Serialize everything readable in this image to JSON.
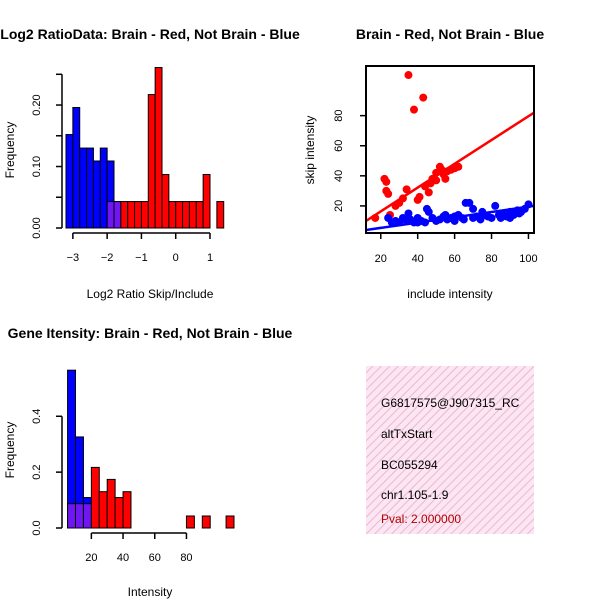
{
  "colors": {
    "brain": "#ff0000",
    "not_brain": "#0000ff",
    "overlap": "#a020f0",
    "info_bg": "#f7d3ea"
  },
  "info": {
    "line1": "G6817575@J907315_RC",
    "line2": "altTxStart",
    "line3": "BC055294",
    "line4": "chr1.105-1.9",
    "pval": "Pval: 2.000000"
  },
  "chart_data": [
    {
      "id": "ratio",
      "type": "bar",
      "title": "Log2 RatioData: Brain - Red, Not Brain - Blue",
      "xlabel": "Log2 Ratio Skip/Include",
      "ylabel": "Frequency",
      "xlim": [
        -3.2,
        1.7
      ],
      "ylim": [
        0,
        0.27
      ],
      "xticks": [
        -3,
        -2,
        -1,
        0,
        1
      ],
      "xtick_labels": [
        "−3",
        "−2",
        "−1",
        "0",
        "1"
      ],
      "yticks": [
        0.0,
        0.05,
        0.1,
        0.15,
        0.2,
        0.25
      ],
      "ytick_labels": [
        "0.00",
        "",
        "0.10",
        "",
        "0.20",
        ""
      ],
      "bin_width": 0.2,
      "series": [
        {
          "name": "Not Brain",
          "color": "blue",
          "bins": [
            [
              -3.1,
              0.152
            ],
            [
              -2.9,
              0.196
            ],
            [
              -2.7,
              0.13
            ],
            [
              -2.5,
              0.13
            ],
            [
              -2.3,
              0.109
            ],
            [
              -2.1,
              0.13
            ],
            [
              -1.9,
              0.109
            ],
            [
              -1.7,
              0.043
            ]
          ]
        },
        {
          "name": "Brain",
          "color": "red",
          "bins": [
            [
              -1.9,
              0.043
            ],
            [
              -1.7,
              0.043
            ],
            [
              -1.5,
              0.043
            ],
            [
              -1.3,
              0.043
            ],
            [
              -1.1,
              0.043
            ],
            [
              -0.9,
              0.043
            ],
            [
              -0.7,
              0.217
            ],
            [
              -0.5,
              0.261
            ],
            [
              -0.3,
              0.087
            ],
            [
              -0.1,
              0.043
            ],
            [
              0.1,
              0.043
            ],
            [
              0.3,
              0.043
            ],
            [
              0.5,
              0.043
            ],
            [
              0.7,
              0.043
            ],
            [
              0.9,
              0.087
            ],
            [
              1.3,
              0.043
            ]
          ]
        }
      ]
    },
    {
      "id": "scatter",
      "type": "scatter",
      "title": "Brain - Red, Not Brain - Blue",
      "xlabel": "include intensity",
      "ylabel": "skip intensity",
      "xlim": [
        12,
        103
      ],
      "ylim": [
        2,
        113
      ],
      "xticks": [
        20,
        40,
        60,
        80,
        100
      ],
      "yticks": [
        20,
        40,
        60,
        80
      ],
      "series": [
        {
          "name": "Brain",
          "color": "red",
          "points": [
            [
              35,
              107
            ],
            [
              43,
              92
            ],
            [
              38,
              84
            ],
            [
              22,
              38
            ],
            [
              23,
              36
            ],
            [
              23,
              30
            ],
            [
              24,
              28
            ],
            [
              34,
              31
            ],
            [
              30,
              22
            ],
            [
              41,
              26
            ],
            [
              46,
              29
            ],
            [
              47,
              35
            ],
            [
              48,
              38
            ],
            [
              50,
              37
            ],
            [
              52,
              46
            ],
            [
              53,
              44
            ],
            [
              54,
              41
            ],
            [
              55,
              38
            ],
            [
              58,
              44
            ],
            [
              60,
              45
            ],
            [
              62,
              46
            ],
            [
              17,
              12
            ],
            [
              25,
              14
            ],
            [
              28,
              20
            ],
            [
              32,
              25
            ],
            [
              40,
              24
            ],
            [
              44,
              33
            ],
            [
              50,
              42
            ],
            [
              56,
              43
            ]
          ],
          "fit": [
            [
              12,
              10
            ],
            [
              103,
              82
            ]
          ]
        },
        {
          "name": "Not Brain",
          "color": "blue",
          "points": [
            [
              24,
              12
            ],
            [
              26,
              9
            ],
            [
              28,
              10
            ],
            [
              30,
              9
            ],
            [
              32,
              12
            ],
            [
              34,
              10
            ],
            [
              36,
              11
            ],
            [
              38,
              9
            ],
            [
              40,
              12
            ],
            [
              42,
              10
            ],
            [
              44,
              9
            ],
            [
              46,
              16
            ],
            [
              48,
              12
            ],
            [
              50,
              10
            ],
            [
              52,
              11
            ],
            [
              54,
              13
            ],
            [
              56,
              11
            ],
            [
              58,
              12
            ],
            [
              60,
              10
            ],
            [
              62,
              14
            ],
            [
              64,
              12
            ],
            [
              66,
              22
            ],
            [
              68,
              22
            ],
            [
              70,
              12
            ],
            [
              72,
              13
            ],
            [
              74,
              11
            ],
            [
              76,
              14
            ],
            [
              78,
              13
            ],
            [
              80,
              12
            ],
            [
              82,
              20
            ],
            [
              84,
              14
            ],
            [
              86,
              15
            ],
            [
              88,
              13
            ],
            [
              90,
              16
            ],
            [
              92,
              14
            ],
            [
              94,
              17
            ],
            [
              96,
              16
            ],
            [
              98,
              18
            ],
            [
              100,
              21
            ],
            [
              35,
              15
            ],
            [
              45,
              18
            ],
            [
              55,
              14
            ],
            [
              65,
              11
            ],
            [
              75,
              16
            ],
            [
              85,
              12
            ],
            [
              95,
              15
            ],
            [
              40,
              9
            ],
            [
              60,
              13
            ],
            [
              70,
              18
            ],
            [
              90,
              12
            ]
          ],
          "fit": [
            [
              12,
              4
            ],
            [
              103,
              20
            ]
          ]
        }
      ]
    },
    {
      "id": "intensity",
      "type": "bar",
      "title": "Gene Itensity: Brain - Red, Not Brain - Blue",
      "xlabel": "Intensity",
      "ylabel": "Frequency",
      "xlim": [
        4,
        110
      ],
      "ylim": [
        0,
        0.58
      ],
      "xticks": [
        20,
        40,
        60,
        80
      ],
      "xtick_labels": [
        "20",
        "40",
        "60",
        "80"
      ],
      "yticks": [
        0.0,
        0.2,
        0.4
      ],
      "ytick_labels": [
        "0.0",
        "0.2",
        "0.4"
      ],
      "bin_width": 5,
      "series": [
        {
          "name": "Not Brain",
          "color": "blue",
          "bins": [
            [
              7.5,
              0.565
            ],
            [
              12.5,
              0.326
            ],
            [
              17.5,
              0.109
            ]
          ]
        },
        {
          "name": "Brain",
          "color": "red",
          "bins": [
            [
              7.5,
              0.087
            ],
            [
              12.5,
              0.087
            ],
            [
              17.5,
              0.087
            ],
            [
              22.5,
              0.217
            ],
            [
              27.5,
              0.13
            ],
            [
              32.5,
              0.174
            ],
            [
              37.5,
              0.109
            ],
            [
              42.5,
              0.13
            ],
            [
              82.5,
              0.043
            ],
            [
              92.5,
              0.043
            ],
            [
              107.5,
              0.043
            ]
          ]
        }
      ]
    }
  ]
}
